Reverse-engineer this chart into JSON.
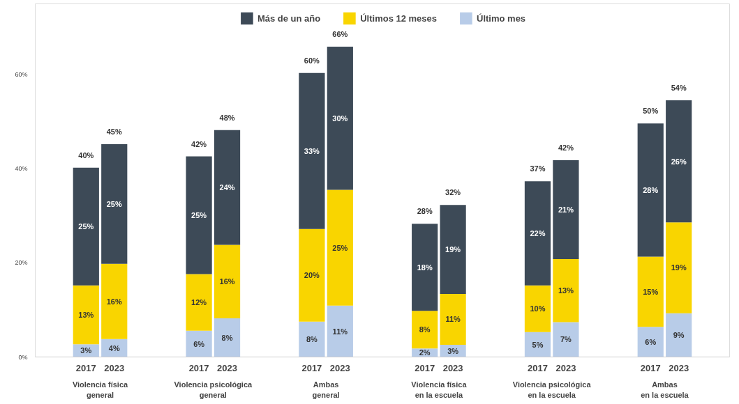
{
  "chart_data": {
    "type": "bar",
    "stacked": true,
    "categories": [
      "2017",
      "2023",
      "2017",
      "2023",
      "2017",
      "2023",
      "2017",
      "2023",
      "2017",
      "2023",
      "2017",
      "2023"
    ],
    "annotations": [
      "Violencia física\ngeneral",
      "Violencia psicológica\ngeneral",
      "Ambas\ngeneral",
      "Violencia física\nen la escuela",
      "Violencia psicológica\nen la escuela",
      "Ambas\nen la escuela"
    ],
    "series": [
      {
        "name": "Último mes",
        "color": "#b8cce8",
        "values": [
          2.7,
          3.8,
          5.6,
          8.2,
          7.5,
          10.9,
          1.8,
          2.6,
          5.3,
          7.4,
          6.4,
          9.3
        ],
        "value_labels": [
          "3%",
          "4%",
          "6%",
          "8%",
          "8%",
          "11%",
          "2%",
          "3%",
          "5%",
          "7%",
          "6%",
          "9%"
        ]
      },
      {
        "name": "Últimos 12 meses",
        "color": "#f9d500",
        "values": [
          12.5,
          16.0,
          12.0,
          15.6,
          19.7,
          24.6,
          8.0,
          10.8,
          9.9,
          13.4,
          14.9,
          19.3
        ],
        "value_labels": [
          "13%",
          "16%",
          "12%",
          "16%",
          "20%",
          "25%",
          "8%",
          "11%",
          "10%",
          "13%",
          "15%",
          "19%"
        ]
      },
      {
        "name": "Más de un año",
        "color": "#3d4a57",
        "values": [
          25.0,
          25.4,
          25.0,
          24.4,
          33.1,
          30.4,
          18.5,
          18.9,
          22.1,
          21.0,
          28.3,
          25.9
        ],
        "value_labels": [
          "25%",
          "25%",
          "25%",
          "24%",
          "33%",
          "30%",
          "18%",
          "19%",
          "22%",
          "21%",
          "28%",
          "26%"
        ]
      }
    ],
    "totals": [
      "40%",
      "45%",
      "42%",
      "48%",
      "60%",
      "66%",
      "28%",
      "32%",
      "37%",
      "42%",
      "50%",
      "54%"
    ],
    "ylim": [
      0,
      75
    ],
    "yticks": [
      {
        "value": 0,
        "label": "0%"
      },
      {
        "value": 20,
        "label": "20%"
      },
      {
        "value": 40,
        "label": "40%"
      },
      {
        "value": 60,
        "label": "60%"
      }
    ],
    "grid": false,
    "legend": "top"
  }
}
